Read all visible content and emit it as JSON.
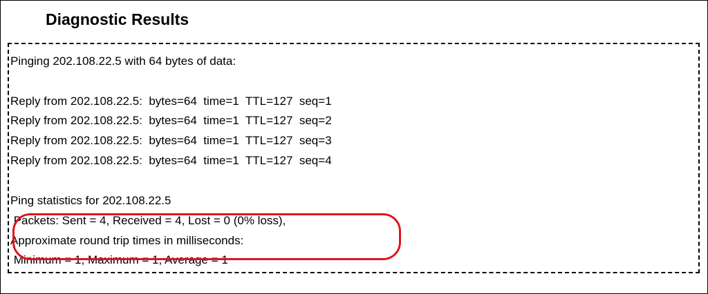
{
  "title": "Diagnostic Results",
  "lines": [
    "Pinging 202.108.22.5 with 64 bytes of data:",
    "Reply from 202.108.22.5:  bytes=64  time=1  TTL=127  seq=1",
    "Reply from 202.108.22.5:  bytes=64  time=1  TTL=127  seq=2",
    "Reply from 202.108.22.5:  bytes=64  time=1  TTL=127  seq=3",
    "Reply from 202.108.22.5:  bytes=64  time=1  TTL=127  seq=4",
    "Ping statistics for 202.108.22.5",
    " Packets: Sent = 4, Received = 4, Lost = 0 (0% loss),",
    "Approximate round trip times in milliseconds:",
    " Minimum = 1, Maximum = 1, Average = 1"
  ]
}
